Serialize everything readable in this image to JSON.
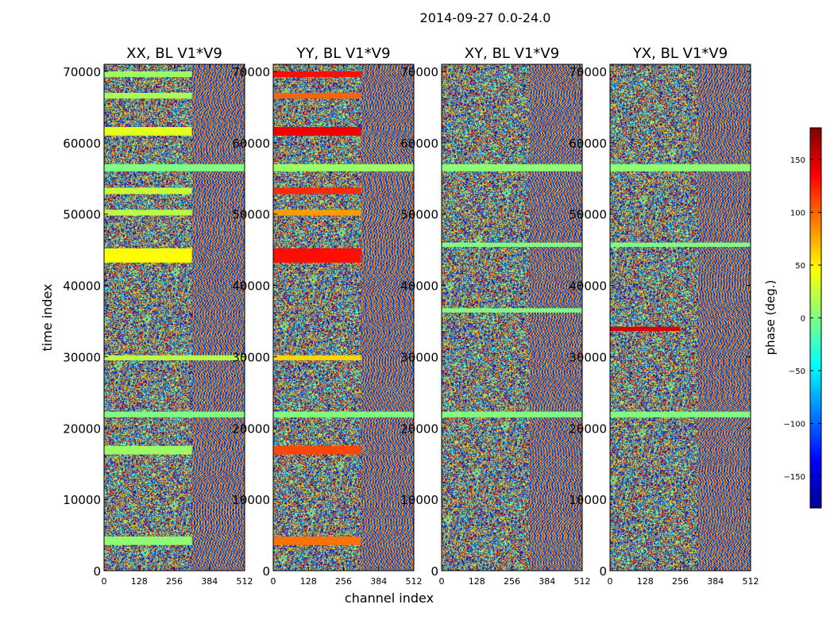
{
  "figure_title": "2014-09-27 0.0-24.0",
  "colorbar": {
    "label": "phase (deg.)",
    "range": [
      -180,
      180
    ],
    "ticks": [
      150,
      100,
      50,
      0,
      -50,
      -100,
      -150
    ],
    "tick_labels": [
      "150",
      "100",
      "50",
      "0",
      "−50",
      "−100",
      "−150"
    ],
    "colors": [
      "#00008f",
      "#0000ff",
      "#00ffff",
      "#80ff80",
      "#ffff00",
      "#ff0000",
      "#800000"
    ]
  },
  "chart_data": {
    "type": "heatmap",
    "xlabel": "channel index",
    "ylabel": "time index",
    "xlim": [
      0,
      512
    ],
    "ylim": [
      0,
      71000
    ],
    "x_ticks": [
      0,
      128,
      256,
      384,
      512
    ],
    "x_tick_labels": [
      "0",
      "128",
      "256",
      "384",
      "512"
    ],
    "y_ticks": [
      0,
      10000,
      20000,
      30000,
      40000,
      50000,
      60000,
      70000
    ],
    "y_tick_labels": [
      "0",
      "10000",
      "20000",
      "30000",
      "40000",
      "50000",
      "60000",
      "70000"
    ],
    "value": "phase (deg.)",
    "panels": [
      {
        "title": "XX, BL V1*V9",
        "bands": [
          {
            "t0": 3600,
            "t1": 4800,
            "phase": 5,
            "c1": 320
          },
          {
            "t0": 16300,
            "t1": 17500,
            "phase": 10,
            "c1": 320
          },
          {
            "t0": 21500,
            "t1": 22300,
            "phase": 0,
            "c1": 512
          },
          {
            "t0": 29500,
            "t1": 30200,
            "phase": 20,
            "c1": 512
          },
          {
            "t0": 43200,
            "t1": 45200,
            "phase": 45,
            "c1": 320
          },
          {
            "t0": 49800,
            "t1": 50600,
            "phase": 20,
            "c1": 320
          },
          {
            "t0": 52800,
            "t1": 53700,
            "phase": 25,
            "c1": 320
          },
          {
            "t0": 56000,
            "t1": 57000,
            "phase": 0,
            "c1": 512
          },
          {
            "t0": 61000,
            "t1": 62200,
            "phase": 35,
            "c1": 320
          },
          {
            "t0": 66200,
            "t1": 67000,
            "phase": 15,
            "c1": 320
          },
          {
            "t0": 69200,
            "t1": 70000,
            "phase": 10,
            "c1": 320
          }
        ]
      },
      {
        "title": "YY, BL V1*V9",
        "bands": [
          {
            "t0": 3600,
            "t1": 4800,
            "phase": 95,
            "c1": 320
          },
          {
            "t0": 16300,
            "t1": 17500,
            "phase": 110,
            "c1": 320
          },
          {
            "t0": 21500,
            "t1": 22300,
            "phase": 0,
            "c1": 512
          },
          {
            "t0": 29500,
            "t1": 30200,
            "phase": 60,
            "c1": 320
          },
          {
            "t0": 43200,
            "t1": 45200,
            "phase": 130,
            "c1": 320
          },
          {
            "t0": 49800,
            "t1": 50600,
            "phase": 80,
            "c1": 320
          },
          {
            "t0": 52800,
            "t1": 53700,
            "phase": 120,
            "c1": 320
          },
          {
            "t0": 56000,
            "t1": 57000,
            "phase": 10,
            "c1": 512
          },
          {
            "t0": 61000,
            "t1": 62200,
            "phase": 140,
            "c1": 320
          },
          {
            "t0": 66200,
            "t1": 67000,
            "phase": 100,
            "c1": 320
          },
          {
            "t0": 69200,
            "t1": 70000,
            "phase": 130,
            "c1": 320
          }
        ]
      },
      {
        "title": "XY, BL V1*V9",
        "bands": [
          {
            "t0": 21500,
            "t1": 22300,
            "phase": 0,
            "c1": 512
          },
          {
            "t0": 36200,
            "t1": 36800,
            "phase": 0,
            "c1": 512
          },
          {
            "t0": 45400,
            "t1": 46000,
            "phase": 0,
            "c1": 512
          },
          {
            "t0": 56000,
            "t1": 57000,
            "phase": 5,
            "c1": 512
          }
        ]
      },
      {
        "title": "YX, BL V1*V9",
        "bands": [
          {
            "t0": 21500,
            "t1": 22300,
            "phase": 0,
            "c1": 512
          },
          {
            "t0": 33600,
            "t1": 34200,
            "phase": 150,
            "c1": 256
          },
          {
            "t0": 45400,
            "t1": 46000,
            "phase": 0,
            "c1": 512
          },
          {
            "t0": 56000,
            "t1": 57000,
            "phase": 5,
            "c1": 512
          }
        ]
      }
    ]
  }
}
